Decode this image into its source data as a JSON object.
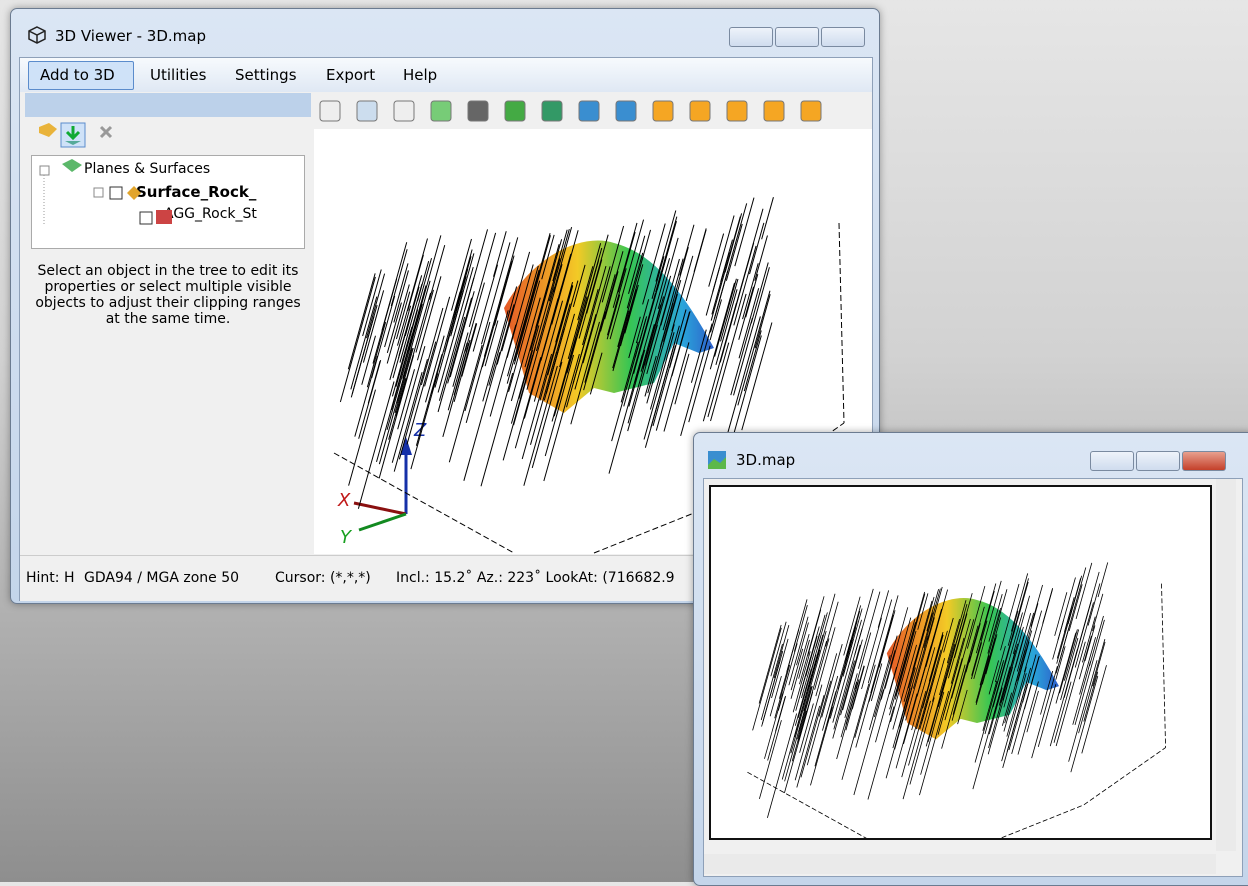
{
  "viewer": {
    "title": "3D Viewer - 3D.map",
    "menu": [
      "Add to 3D",
      "Utilities",
      "Settings",
      "Export",
      "Help"
    ],
    "tree": [
      "Planes & Surfaces",
      "Surface_Rock_",
      "AGG_Rock_St"
    ],
    "hint": "Select an object in the tree to edit its properties or select multiple visible objects to adjust their clipping ranges at the same time.",
    "axes": [
      "Z",
      "X",
      "Y"
    ],
    "status": [
      "Hint: H",
      "GDA94 / MGA zone 50",
      "Cursor: (*,*,*)",
      "Incl.: 15.2˚ Az.: 223˚ LookAt: (716682.9"
    ]
  },
  "map_window": {
    "title": "3D.map"
  }
}
